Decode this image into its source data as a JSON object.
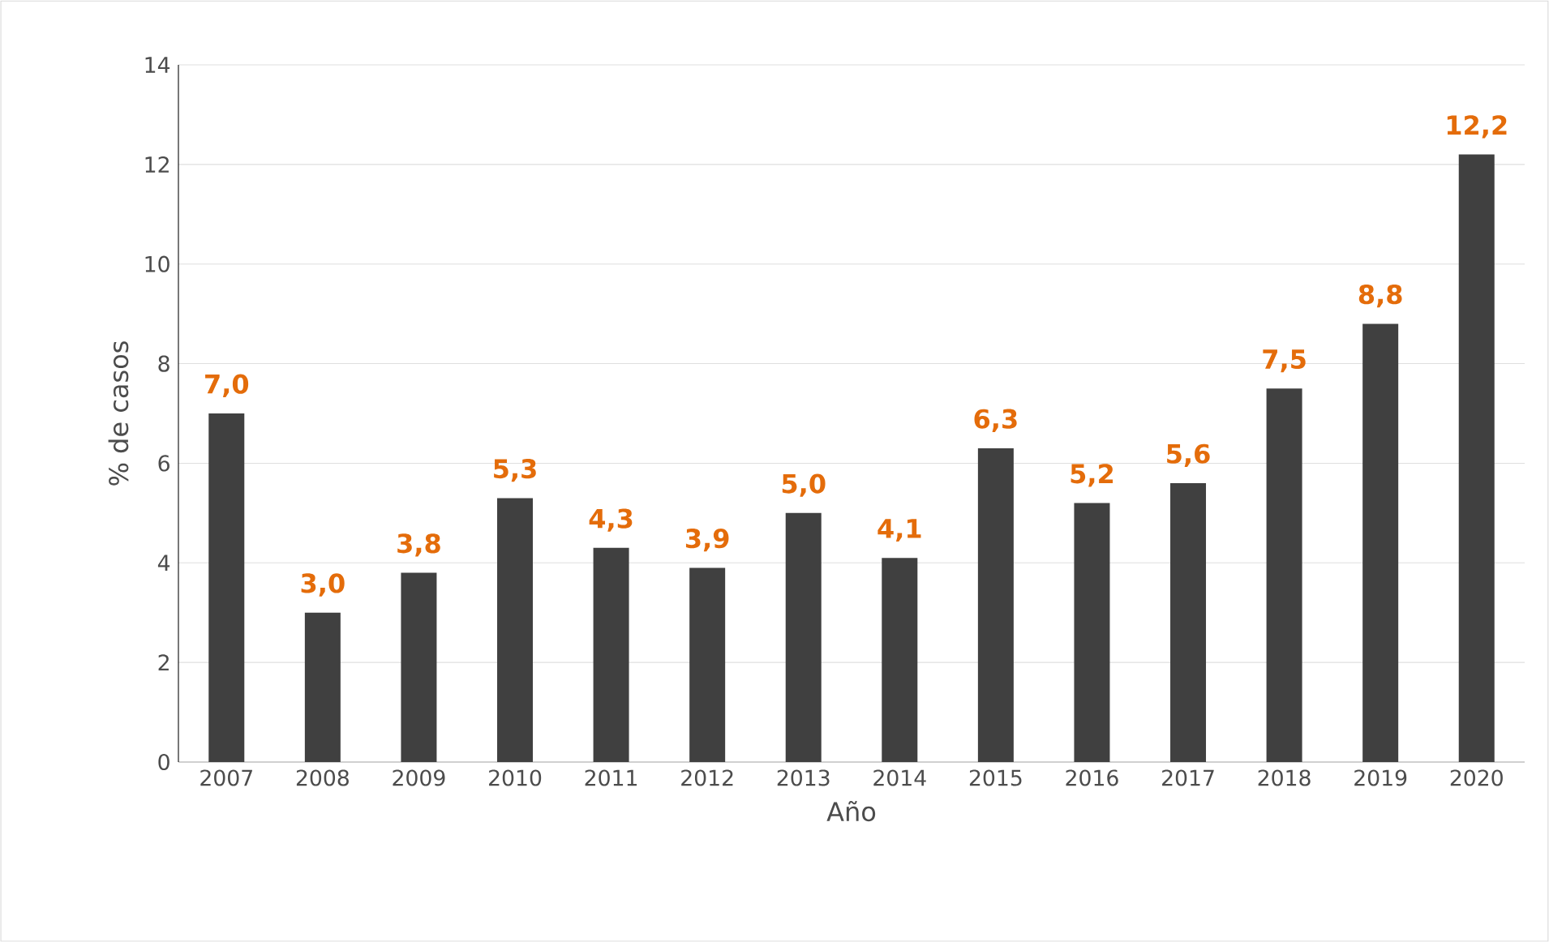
{
  "chart_data": {
    "type": "bar",
    "xlabel": "Año",
    "ylabel": "% de casos",
    "categories": [
      "2007",
      "2008",
      "2009",
      "2010",
      "2011",
      "2012",
      "2013",
      "2014",
      "2015",
      "2016",
      "2017",
      "2018",
      "2019",
      "2020"
    ],
    "values": [
      7.0,
      3.0,
      3.8,
      5.3,
      4.3,
      3.9,
      5.0,
      4.1,
      6.3,
      5.2,
      5.6,
      7.5,
      8.8,
      12.2
    ],
    "value_labels": [
      "7,0",
      "3,0",
      "3,8",
      "5,3",
      "4,3",
      "3,9",
      "5,0",
      "4,1",
      "6,3",
      "5,2",
      "5,6",
      "7,5",
      "8,8",
      "12,2"
    ],
    "color": "#404040",
    "ylim": [
      0,
      14
    ],
    "yticks": [
      0,
      2,
      4,
      6,
      8,
      10,
      12,
      14
    ],
    "grid": "y"
  }
}
